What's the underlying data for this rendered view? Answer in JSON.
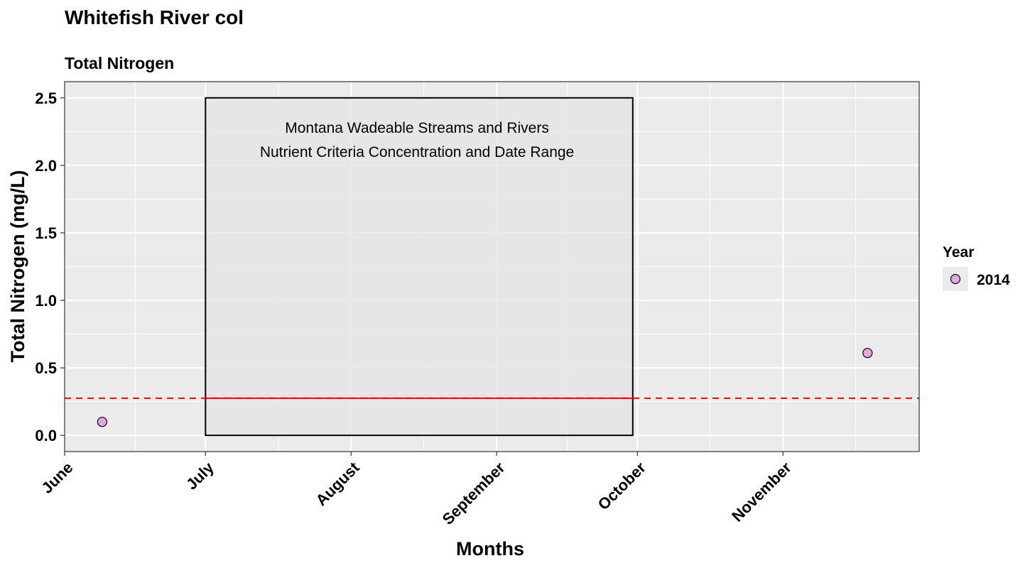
{
  "chart_data": {
    "type": "scatter",
    "title": "Whitefish River col",
    "subtitle": "Total Nitrogen",
    "xlabel": "Months",
    "ylabel": "Total Nitrogen (mg/L)",
    "x_ticks": [
      "2014-06-01",
      "2014-07-01",
      "2014-08-01",
      "2014-09-01",
      "2014-10-01",
      "2014-11-01"
    ],
    "x_tick_labels": [
      "June",
      "July",
      "August",
      "September",
      "October",
      "November"
    ],
    "xlim": [
      "2014-06-01",
      "2014-11-30"
    ],
    "y_ticks": [
      0.0,
      0.5,
      1.0,
      1.5,
      2.0,
      2.5
    ],
    "y_tick_labels": [
      "0.0",
      "0.5",
      "1.0",
      "1.5",
      "2.0",
      "2.5"
    ],
    "ylim": [
      -0.12,
      2.62
    ],
    "grid": true,
    "series": [
      {
        "name": "2014",
        "color": "#e7a6e0",
        "points": [
          {
            "x": "2014-06-09",
            "y": 0.1
          },
          {
            "x": "2014-11-19",
            "y": 0.61
          }
        ]
      }
    ],
    "criteria_box": {
      "x_start": "2014-07-01",
      "x_end": "2014-09-30",
      "y_min": 0.0,
      "y_max": 2.5,
      "annotation_lines": [
        "Montana Wadeable Streams and Rivers",
        "Nutrient Criteria Concentration and Date Range"
      ]
    },
    "criteria_line": {
      "y": 0.275,
      "color": "#ff0000"
    },
    "legend": {
      "title": "Year",
      "placement": "right"
    },
    "colors": {
      "panel_bg": "#ebebeb",
      "grid": "#ffffff",
      "box_fill": "#e5e5e5",
      "box_border": "#000000"
    }
  }
}
